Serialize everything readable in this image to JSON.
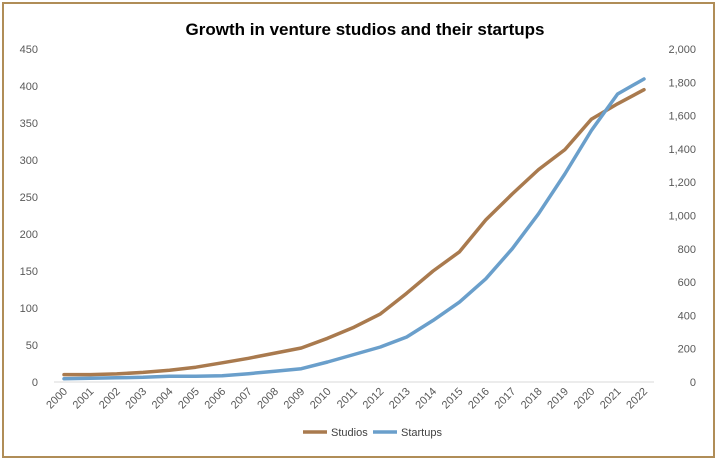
{
  "chart_data": {
    "type": "line",
    "title": "Growth in venture studios and their startups",
    "xlabel": "",
    "ylabel": "",
    "categories": [
      "2000",
      "2001",
      "2002",
      "2003",
      "2004",
      "2005",
      "2006",
      "2007",
      "2008",
      "2009",
      "2010",
      "2011",
      "2012",
      "2013",
      "2014",
      "2015",
      "2016",
      "2017",
      "2018",
      "2019",
      "2020",
      "2021",
      "2022"
    ],
    "series": [
      {
        "name": "Studios",
        "axis": "left",
        "color": "#a97a4e",
        "values": [
          10,
          10,
          11,
          13,
          16,
          20,
          26,
          32,
          39,
          46,
          59,
          74,
          92,
          120,
          150,
          176,
          219,
          254,
          287,
          314,
          355,
          376,
          395
        ]
      },
      {
        "name": "Startups",
        "axis": "right",
        "color": "#6a9fcb",
        "values": [
          20,
          22,
          25,
          28,
          35,
          35,
          38,
          50,
          65,
          80,
          120,
          165,
          210,
          270,
          370,
          480,
          620,
          800,
          1010,
          1250,
          1510,
          1730,
          1820
        ]
      }
    ],
    "left_axis": {
      "min": 0,
      "max": 450,
      "step": 50,
      "ticks": [
        "0",
        "50",
        "100",
        "150",
        "200",
        "250",
        "300",
        "350",
        "400",
        "450"
      ]
    },
    "right_axis": {
      "min": 0,
      "max": 2000,
      "step": 200,
      "ticks": [
        "0",
        "200",
        "400",
        "600",
        "800",
        "1,000",
        "1,200",
        "1,400",
        "1,600",
        "1,800",
        "2,000"
      ]
    },
    "grid": false,
    "legend": "bottom-center"
  }
}
